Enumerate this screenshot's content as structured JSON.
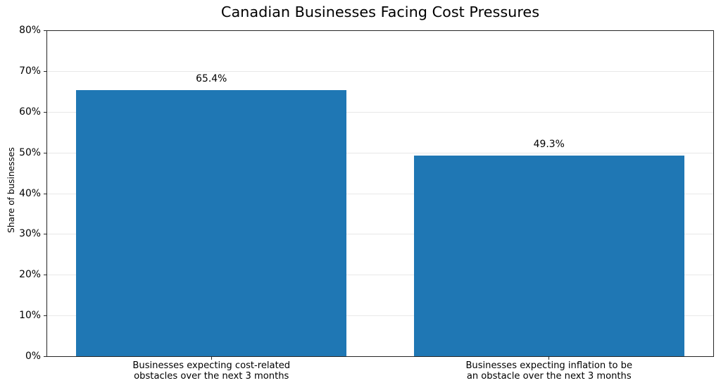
{
  "chart_data": {
    "type": "bar",
    "title": "Canadian Businesses Facing Cost Pressures",
    "ylabel": "Share of businesses",
    "xlabel": "",
    "categories": [
      "Businesses expecting cost-related\nobstacles over the next 3 months",
      "Businesses expecting inflation to be\nan obstacle over the next 3 months"
    ],
    "values": [
      65.4,
      49.3
    ],
    "value_labels": [
      "65.4%",
      "49.3%"
    ],
    "ylim": [
      0,
      80
    ],
    "ytick_step": 10,
    "ytick_labels": [
      "0%",
      "10%",
      "20%",
      "30%",
      "40%",
      "50%",
      "60%",
      "70%",
      "80%"
    ],
    "bar_color": "#1f77b4",
    "grid": true,
    "legend": null
  }
}
